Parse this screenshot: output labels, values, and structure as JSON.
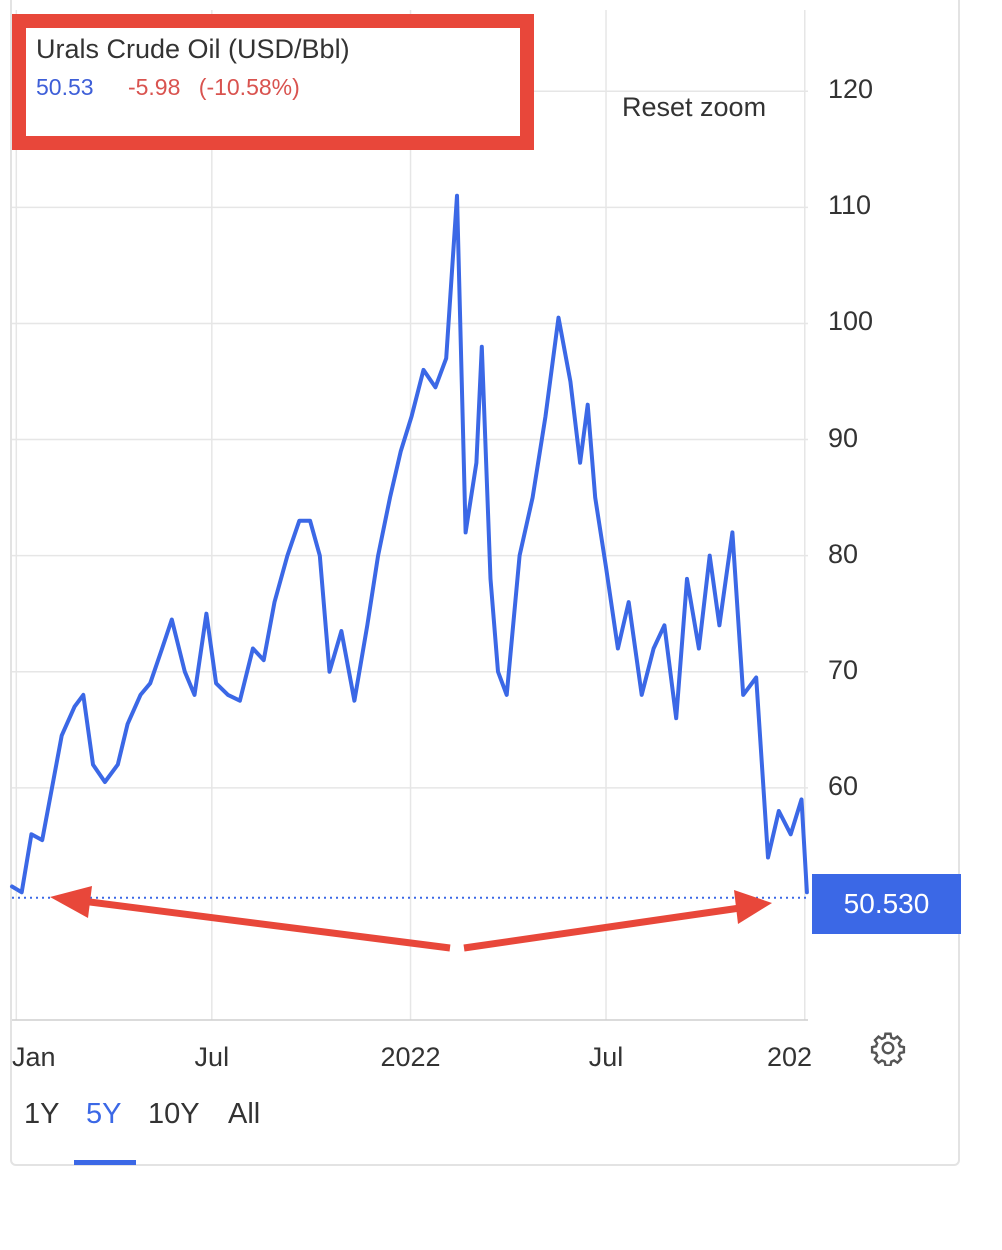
{
  "header": {
    "title": "Urals Crude Oil (USD/Bbl)",
    "price": "50.53",
    "change": "-5.98",
    "change_pct": "(-10.58%)"
  },
  "toolbar": {
    "reset_zoom_label": "Reset zoom"
  },
  "last_price_label": "50.530",
  "range_buttons": [
    {
      "label": "1Y",
      "active": false
    },
    {
      "label": "5Y",
      "active": true
    },
    {
      "label": "10Y",
      "active": false
    },
    {
      "label": "All",
      "active": false
    }
  ],
  "settings_icon": "gear-icon",
  "colors": {
    "line": "#3b68e6",
    "annotation": "#e8473a",
    "change": "#d9534f",
    "tag_bg": "#3b68e6"
  },
  "chart_data": {
    "type": "line",
    "title": "Urals Crude Oil (USD/Bbl)",
    "y_ticks": [
      "60",
      "70",
      "80",
      "90",
      "100",
      "110",
      "120"
    ],
    "ylim": [
      40,
      127
    ],
    "x_ticks": [
      "Jan",
      "Jul",
      "2022",
      "Jul",
      "202"
    ],
    "x_tick_dates": [
      "2021-01-01",
      "2021-07-01",
      "2022-01-01",
      "2022-07-01",
      "2023-01-01"
    ],
    "xlim": [
      "2020-12-28",
      "2023-01-04"
    ],
    "grid": true,
    "reference_line": {
      "value": 50.53,
      "style": "dotted"
    },
    "series": [
      {
        "x": [
          "2020-12-28",
          "2021-01-06",
          "2021-01-15",
          "2021-01-25",
          "2021-02-03",
          "2021-02-12",
          "2021-02-24",
          "2021-03-04",
          "2021-03-13",
          "2021-03-24",
          "2021-04-05",
          "2021-04-14",
          "2021-04-26",
          "2021-05-05",
          "2021-05-16",
          "2021-05-25",
          "2021-06-06",
          "2021-06-15",
          "2021-06-26",
          "2021-07-05",
          "2021-07-16",
          "2021-07-27",
          "2021-08-08",
          "2021-08-18",
          "2021-08-28",
          "2021-09-09",
          "2021-09-20",
          "2021-09-30",
          "2021-10-09",
          "2021-10-18",
          "2021-10-29",
          "2021-11-10",
          "2021-11-22",
          "2021-12-02",
          "2021-12-13",
          "2021-12-23",
          "2022-01-02",
          "2022-01-13",
          "2022-01-24",
          "2022-02-03",
          "2022-02-13",
          "2022-02-21",
          "2022-03-03",
          "2022-03-08",
          "2022-03-16",
          "2022-03-23",
          "2022-03-31",
          "2022-04-12",
          "2022-04-24",
          "2022-05-06",
          "2022-05-18",
          "2022-05-29",
          "2022-06-07",
          "2022-06-14",
          "2022-06-21",
          "2022-07-01",
          "2022-07-12",
          "2022-07-22",
          "2022-08-03",
          "2022-08-14",
          "2022-08-24",
          "2022-09-04",
          "2022-09-14",
          "2022-09-25",
          "2022-10-05",
          "2022-10-14",
          "2022-10-26",
          "2022-11-05",
          "2022-11-17",
          "2022-11-28",
          "2022-12-08",
          "2022-12-19",
          "2022-12-29",
          "2023-01-03"
        ],
        "y": [
          51.5,
          51,
          56,
          55.5,
          60,
          64.5,
          67,
          68,
          62,
          60.5,
          62,
          65.5,
          68,
          69,
          72,
          74.5,
          70,
          68,
          75,
          69,
          68,
          67.5,
          72,
          71,
          76,
          80,
          83,
          83,
          80,
          70,
          73.5,
          67.5,
          74,
          80,
          85,
          89,
          92,
          96,
          94.5,
          97,
          111,
          82,
          88,
          98,
          78,
          70,
          68,
          80,
          85,
          92,
          100.5,
          95,
          88,
          93,
          85,
          79,
          72,
          76,
          68,
          72,
          74,
          66,
          78,
          72,
          80,
          74,
          82,
          68,
          69.5,
          54,
          58,
          56,
          59,
          51
        ]
      }
    ]
  }
}
